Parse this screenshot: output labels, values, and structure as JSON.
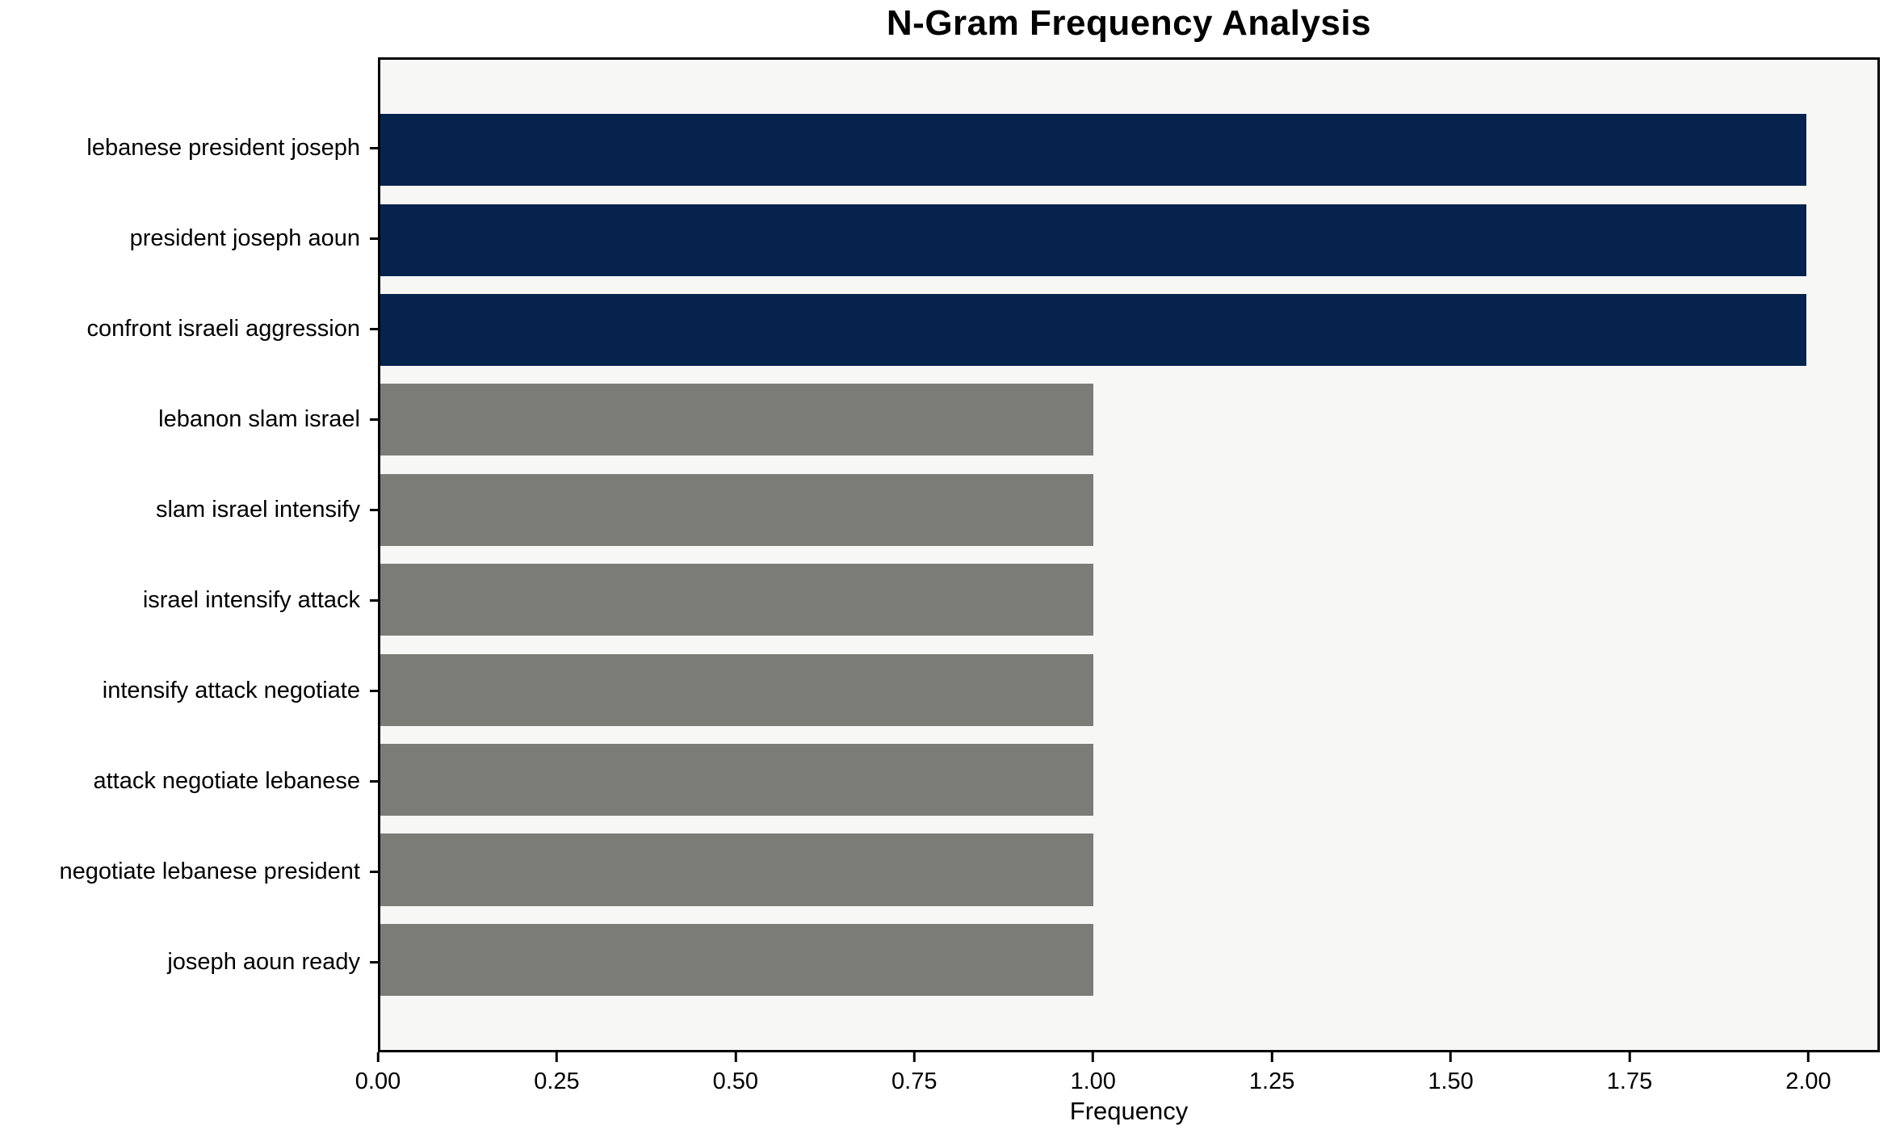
{
  "chart_data": {
    "type": "bar",
    "orientation": "horizontal",
    "title": "N-Gram Frequency Analysis",
    "xlabel": "Frequency",
    "ylabel": "",
    "categories": [
      "lebanese president joseph",
      "president joseph aoun",
      "confront israeli aggression",
      "lebanon slam israel",
      "slam israel intensify",
      "israel intensify attack",
      "intensify attack negotiate",
      "attack negotiate lebanese",
      "negotiate lebanese president",
      "joseph aoun ready"
    ],
    "values": [
      2,
      2,
      2,
      1,
      1,
      1,
      1,
      1,
      1,
      1
    ],
    "bar_colors": [
      "highlight",
      "highlight",
      "highlight",
      "default",
      "default",
      "default",
      "default",
      "default",
      "default",
      "default"
    ],
    "xlim": [
      0,
      2.1
    ],
    "xticks": [
      0,
      0.25,
      0.5,
      0.75,
      1.0,
      1.25,
      1.5,
      1.75,
      2.0
    ],
    "xtick_labels": [
      "0.00",
      "0.25",
      "0.50",
      "0.75",
      "1.00",
      "1.25",
      "1.50",
      "1.75",
      "2.00"
    ],
    "grid": false,
    "legend": "none",
    "colors": {
      "highlight": "#06234d",
      "default": "#7b7b78",
      "plot_background": "#f7f7f6",
      "figure_background": "#ffffff",
      "spine": "#000000",
      "text": "#000000"
    }
  }
}
